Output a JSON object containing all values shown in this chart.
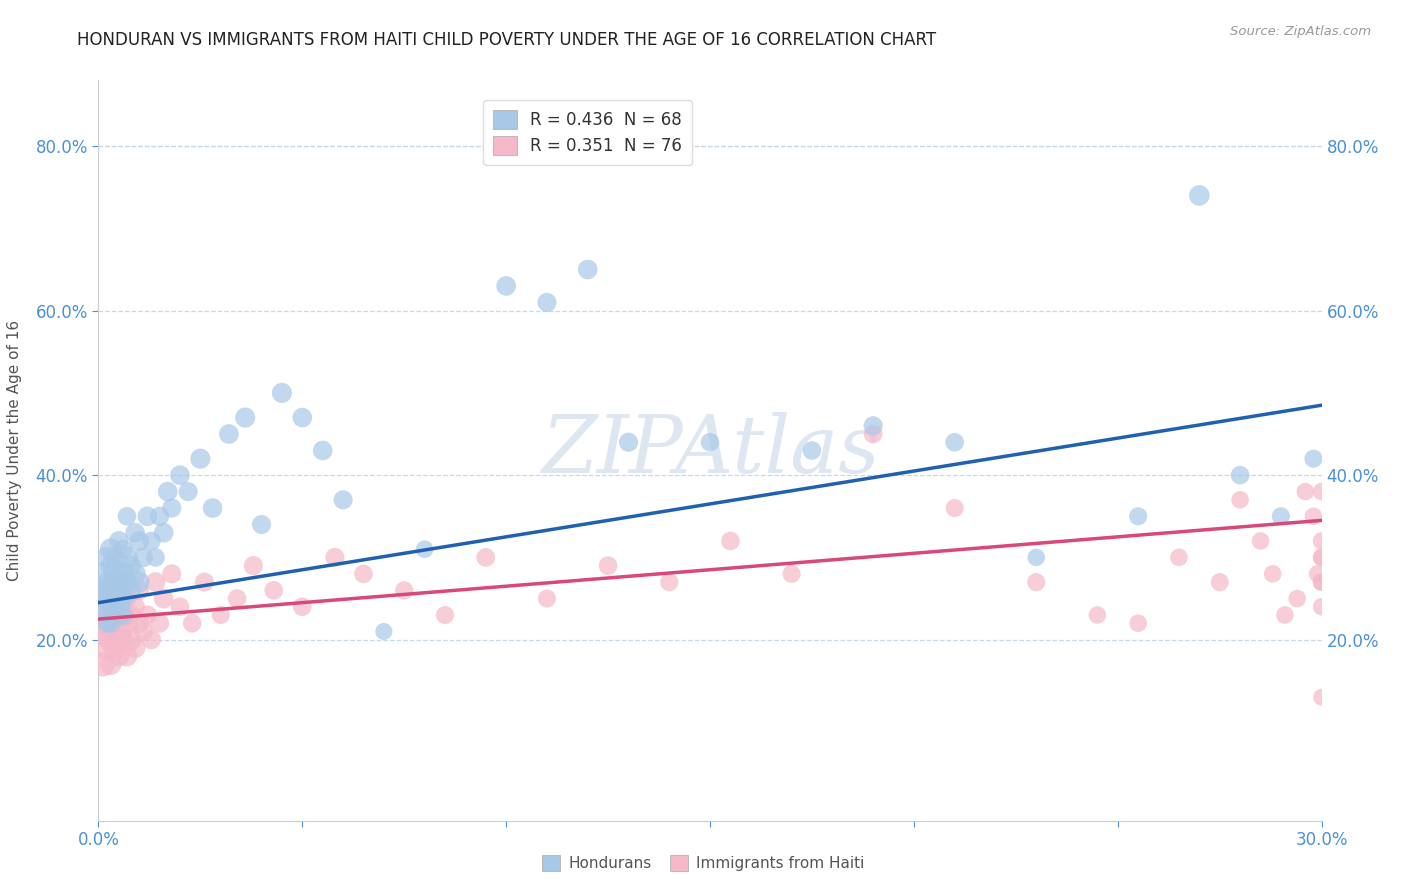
{
  "title": "HONDURAN VS IMMIGRANTS FROM HAITI CHILD POVERTY UNDER THE AGE OF 16 CORRELATION CHART",
  "source": "Source: ZipAtlas.com",
  "ylabel": "Child Poverty Under the Age of 16",
  "xlim": [
    0,
    0.3
  ],
  "ylim": [
    -0.02,
    0.88
  ],
  "blue_R": "0.436",
  "blue_N": "68",
  "pink_R": "0.351",
  "pink_N": "76",
  "blue_color": "#a8c8e8",
  "pink_color": "#f5b8c8",
  "blue_line_color": "#2060b0",
  "pink_line_color": "#d84878",
  "watermark": "ZIPAtlas",
  "watermark_color": "#c8d8e8",
  "background_color": "#ffffff",
  "grid_color": "#c8d8e4",
  "title_color": "#222222",
  "axis_label_color": "#555555",
  "tick_color": "#4a90d9",
  "blue_intercept": 0.245,
  "blue_slope": 0.8,
  "pink_intercept": 0.225,
  "pink_slope": 0.4,
  "hondurans_x": [
    0.001,
    0.001,
    0.001,
    0.002,
    0.002,
    0.002,
    0.002,
    0.003,
    0.003,
    0.003,
    0.003,
    0.003,
    0.004,
    0.004,
    0.004,
    0.004,
    0.005,
    0.005,
    0.005,
    0.005,
    0.006,
    0.006,
    0.006,
    0.006,
    0.007,
    0.007,
    0.007,
    0.008,
    0.008,
    0.009,
    0.009,
    0.01,
    0.01,
    0.011,
    0.012,
    0.013,
    0.014,
    0.015,
    0.016,
    0.017,
    0.018,
    0.02,
    0.022,
    0.025,
    0.028,
    0.032,
    0.036,
    0.04,
    0.045,
    0.05,
    0.055,
    0.06,
    0.07,
    0.08,
    0.1,
    0.11,
    0.12,
    0.13,
    0.15,
    0.175,
    0.19,
    0.21,
    0.23,
    0.255,
    0.27,
    0.28,
    0.29,
    0.298
  ],
  "hondurans_y": [
    0.26,
    0.28,
    0.23,
    0.25,
    0.3,
    0.22,
    0.27,
    0.24,
    0.29,
    0.26,
    0.31,
    0.22,
    0.28,
    0.25,
    0.3,
    0.23,
    0.27,
    0.24,
    0.32,
    0.26,
    0.28,
    0.25,
    0.31,
    0.23,
    0.3,
    0.27,
    0.35,
    0.26,
    0.29,
    0.28,
    0.33,
    0.27,
    0.32,
    0.3,
    0.35,
    0.32,
    0.3,
    0.35,
    0.33,
    0.38,
    0.36,
    0.4,
    0.38,
    0.42,
    0.36,
    0.45,
    0.47,
    0.34,
    0.5,
    0.47,
    0.43,
    0.37,
    0.21,
    0.31,
    0.63,
    0.61,
    0.65,
    0.44,
    0.44,
    0.43,
    0.46,
    0.44,
    0.3,
    0.35,
    0.74,
    0.4,
    0.35,
    0.42
  ],
  "hondurans_size": [
    300,
    250,
    200,
    280,
    230,
    190,
    210,
    260,
    220,
    180,
    240,
    200,
    270,
    220,
    190,
    210,
    280,
    230,
    200,
    220,
    260,
    220,
    190,
    210,
    250,
    210,
    180,
    240,
    200,
    230,
    200,
    220,
    200,
    200,
    200,
    180,
    180,
    190,
    200,
    200,
    190,
    200,
    190,
    210,
    200,
    200,
    210,
    190,
    210,
    200,
    200,
    190,
    150,
    160,
    200,
    190,
    200,
    190,
    180,
    180,
    190,
    180,
    160,
    170,
    220,
    180,
    170,
    170
  ],
  "haiti_x": [
    0.001,
    0.001,
    0.001,
    0.002,
    0.002,
    0.002,
    0.003,
    0.003,
    0.003,
    0.003,
    0.004,
    0.004,
    0.004,
    0.005,
    0.005,
    0.005,
    0.006,
    0.006,
    0.006,
    0.007,
    0.007,
    0.007,
    0.008,
    0.008,
    0.009,
    0.009,
    0.01,
    0.01,
    0.011,
    0.012,
    0.013,
    0.014,
    0.015,
    0.016,
    0.018,
    0.02,
    0.023,
    0.026,
    0.03,
    0.034,
    0.038,
    0.043,
    0.05,
    0.058,
    0.065,
    0.075,
    0.085,
    0.095,
    0.11,
    0.125,
    0.14,
    0.155,
    0.17,
    0.19,
    0.21,
    0.23,
    0.245,
    0.255,
    0.265,
    0.275,
    0.28,
    0.285,
    0.288,
    0.291,
    0.294,
    0.296,
    0.298,
    0.299,
    0.3,
    0.3,
    0.3,
    0.3,
    0.3,
    0.3,
    0.3,
    0.3
  ],
  "haiti_y": [
    0.24,
    0.21,
    0.17,
    0.22,
    0.19,
    0.26,
    0.2,
    0.23,
    0.17,
    0.25,
    0.19,
    0.22,
    0.27,
    0.21,
    0.24,
    0.18,
    0.23,
    0.2,
    0.26,
    0.22,
    0.18,
    0.25,
    0.2,
    0.23,
    0.19,
    0.24,
    0.22,
    0.26,
    0.21,
    0.23,
    0.2,
    0.27,
    0.22,
    0.25,
    0.28,
    0.24,
    0.22,
    0.27,
    0.23,
    0.25,
    0.29,
    0.26,
    0.24,
    0.3,
    0.28,
    0.26,
    0.23,
    0.3,
    0.25,
    0.29,
    0.27,
    0.32,
    0.28,
    0.45,
    0.36,
    0.27,
    0.23,
    0.22,
    0.3,
    0.27,
    0.37,
    0.32,
    0.28,
    0.23,
    0.25,
    0.38,
    0.35,
    0.28,
    0.32,
    0.38,
    0.3,
    0.27,
    0.24,
    0.3,
    0.27,
    0.13
  ],
  "haiti_size": [
    450,
    380,
    310,
    350,
    300,
    260,
    320,
    280,
    240,
    300,
    260,
    220,
    280,
    300,
    260,
    220,
    280,
    240,
    200,
    260,
    220,
    190,
    240,
    200,
    220,
    200,
    210,
    200,
    200,
    190,
    190,
    200,
    190,
    200,
    190,
    180,
    180,
    190,
    170,
    180,
    190,
    180,
    180,
    190,
    180,
    170,
    170,
    180,
    170,
    180,
    170,
    180,
    170,
    180,
    170,
    170,
    160,
    160,
    160,
    170,
    160,
    160,
    160,
    160,
    160,
    160,
    160,
    160,
    160,
    160,
    160,
    160,
    160,
    160,
    160,
    150
  ]
}
